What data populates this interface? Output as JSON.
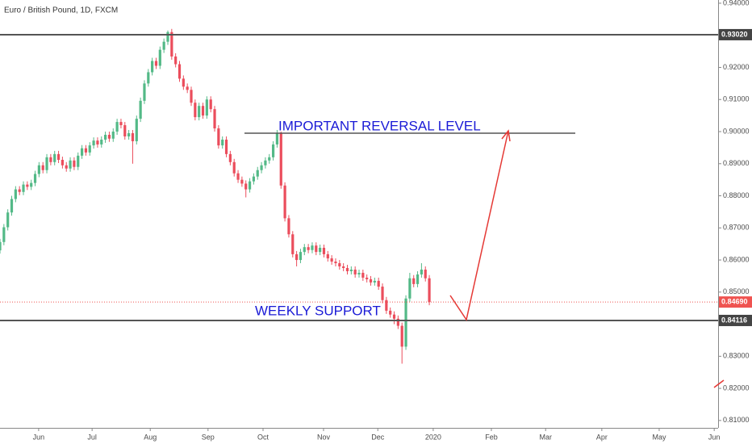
{
  "chart_data": {
    "type": "candlestick",
    "title": "Euro / British Pound, 1D, FXCM",
    "open": [
      0.863,
      0.8656,
      0.8702,
      0.8748,
      0.879,
      0.882,
      0.8812,
      0.8835,
      0.8828,
      0.884,
      0.8868,
      0.8895,
      0.888,
      0.892,
      0.8905,
      0.893,
      0.8912,
      0.8895,
      0.8885,
      0.891,
      0.889,
      0.8925,
      0.8948,
      0.8935,
      0.8957,
      0.8972,
      0.896,
      0.8975,
      0.899,
      0.8978,
      0.9,
      0.903,
      0.902,
      0.8985,
      0.8995,
      0.897,
      0.904,
      0.9096,
      0.915,
      0.9185,
      0.922,
      0.9205,
      0.9255,
      0.928,
      0.931,
      0.9234,
      0.921,
      0.9165,
      0.914,
      0.913,
      0.909,
      0.9045,
      0.908,
      0.905,
      0.91,
      0.907,
      0.901,
      0.8957,
      0.8975,
      0.893,
      0.8905,
      0.887,
      0.885,
      0.8838,
      0.882,
      0.8845,
      0.886,
      0.888,
      0.8895,
      0.891,
      0.892,
      0.896,
      0.8995,
      0.8832,
      0.873,
      0.868,
      0.8618,
      0.86,
      0.8625,
      0.864,
      0.8631,
      0.8645,
      0.8625,
      0.8638,
      0.8618,
      0.8605,
      0.8595,
      0.859,
      0.858,
      0.8575,
      0.8565,
      0.857,
      0.8555,
      0.856,
      0.8545,
      0.854,
      0.853,
      0.8535,
      0.8517,
      0.8475,
      0.8442,
      0.843,
      0.8417,
      0.8395,
      0.833,
      0.848,
      0.8543,
      0.8525,
      0.8555,
      0.857,
      0.8543
    ],
    "high": [
      0.8666,
      0.8712,
      0.8758,
      0.88,
      0.883,
      0.883,
      0.8845,
      0.8845,
      0.885,
      0.8878,
      0.8905,
      0.8905,
      0.893,
      0.893,
      0.894,
      0.894,
      0.8922,
      0.8905,
      0.892,
      0.892,
      0.8935,
      0.8958,
      0.8958,
      0.8967,
      0.8982,
      0.8982,
      0.8985,
      0.9,
      0.9,
      0.901,
      0.904,
      0.904,
      0.903,
      0.9005,
      0.9005,
      0.905,
      0.9106,
      0.916,
      0.9195,
      0.923,
      0.923,
      0.9265,
      0.929,
      0.9315,
      0.932,
      0.9244,
      0.922,
      0.9175,
      0.915,
      0.914,
      0.91,
      0.909,
      0.909,
      0.911,
      0.911,
      0.908,
      0.902,
      0.8985,
      0.8985,
      0.894,
      0.8915,
      0.888,
      0.886,
      0.8848,
      0.8855,
      0.887,
      0.889,
      0.8905,
      0.892,
      0.893,
      0.897,
      0.9005,
      0.9,
      0.8842,
      0.874,
      0.869,
      0.8628,
      0.8635,
      0.865,
      0.865,
      0.8655,
      0.8655,
      0.8648,
      0.8648,
      0.8628,
      0.8615,
      0.8605,
      0.86,
      0.859,
      0.8585,
      0.858,
      0.858,
      0.857,
      0.857,
      0.8555,
      0.855,
      0.8545,
      0.8545,
      0.8527,
      0.8485,
      0.8452,
      0.844,
      0.8427,
      0.8405,
      0.849,
      0.856,
      0.8553,
      0.8565,
      0.859,
      0.858,
      0.8553
    ],
    "low": [
      0.862,
      0.8646,
      0.8692,
      0.8738,
      0.878,
      0.8802,
      0.8802,
      0.8818,
      0.8818,
      0.883,
      0.8858,
      0.887,
      0.887,
      0.8895,
      0.8895,
      0.8902,
      0.8885,
      0.8875,
      0.8875,
      0.888,
      0.888,
      0.8915,
      0.8925,
      0.8925,
      0.8947,
      0.895,
      0.895,
      0.8965,
      0.8968,
      0.8968,
      0.899,
      0.901,
      0.8975,
      0.8975,
      0.89,
      0.896,
      0.903,
      0.9086,
      0.914,
      0.9175,
      0.9195,
      0.9195,
      0.9245,
      0.927,
      0.9224,
      0.92,
      0.9155,
      0.913,
      0.912,
      0.908,
      0.9035,
      0.9035,
      0.904,
      0.904,
      0.906,
      0.9,
      0.8947,
      0.8947,
      0.892,
      0.8895,
      0.886,
      0.884,
      0.8828,
      0.8795,
      0.881,
      0.8835,
      0.885,
      0.887,
      0.8885,
      0.89,
      0.891,
      0.895,
      0.8822,
      0.872,
      0.867,
      0.8608,
      0.858,
      0.859,
      0.8615,
      0.8621,
      0.8621,
      0.8615,
      0.8615,
      0.8608,
      0.8595,
      0.8585,
      0.858,
      0.857,
      0.8565,
      0.8555,
      0.8555,
      0.8545,
      0.8545,
      0.8535,
      0.853,
      0.852,
      0.852,
      0.8507,
      0.8465,
      0.8432,
      0.842,
      0.84,
      0.8385,
      0.8277,
      0.832,
      0.847,
      0.8515,
      0.8515,
      0.8545,
      0.8533,
      0.8459
    ],
    "close": [
      0.8656,
      0.8702,
      0.8748,
      0.879,
      0.882,
      0.8812,
      0.8835,
      0.8828,
      0.884,
      0.8868,
      0.8895,
      0.888,
      0.892,
      0.8905,
      0.893,
      0.8912,
      0.8895,
      0.8885,
      0.891,
      0.889,
      0.8925,
      0.8948,
      0.8935,
      0.8957,
      0.8972,
      0.896,
      0.8975,
      0.899,
      0.8978,
      0.9,
      0.903,
      0.902,
      0.8985,
      0.8995,
      0.897,
      0.904,
      0.9096,
      0.915,
      0.9185,
      0.922,
      0.9205,
      0.9255,
      0.928,
      0.931,
      0.9234,
      0.921,
      0.9165,
      0.914,
      0.913,
      0.909,
      0.9045,
      0.908,
      0.905,
      0.91,
      0.907,
      0.901,
      0.8957,
      0.8975,
      0.893,
      0.8905,
      0.887,
      0.885,
      0.8838,
      0.882,
      0.8845,
      0.886,
      0.888,
      0.8895,
      0.891,
      0.892,
      0.896,
      0.8995,
      0.8832,
      0.873,
      0.868,
      0.8618,
      0.86,
      0.8625,
      0.864,
      0.8631,
      0.8645,
      0.8625,
      0.8638,
      0.8618,
      0.8605,
      0.8595,
      0.859,
      0.858,
      0.8575,
      0.8565,
      0.857,
      0.8555,
      0.856,
      0.8545,
      0.854,
      0.853,
      0.8535,
      0.8517,
      0.8475,
      0.8442,
      0.843,
      0.8417,
      0.8395,
      0.833,
      0.848,
      0.8543,
      0.8525,
      0.8555,
      0.857,
      0.8543,
      0.8469
    ],
    "up_color": "#53b987",
    "down_color": "#eb4d5c",
    "xlim": [
      0,
      184
    ],
    "xticks": [
      {
        "value": 9.9,
        "label": "Jun"
      },
      {
        "value": 23.6,
        "label": "Jul"
      },
      {
        "value": 38.5,
        "label": "Aug"
      },
      {
        "value": 53.3,
        "label": "Sep"
      },
      {
        "value": 67.4,
        "label": "Oct"
      },
      {
        "value": 82.9,
        "label": "Nov"
      },
      {
        "value": 96.8,
        "label": "Dec"
      },
      {
        "value": 111.0,
        "label": "2020"
      },
      {
        "value": 125.9,
        "label": "Feb"
      },
      {
        "value": 139.8,
        "label": "Mar"
      },
      {
        "value": 154.2,
        "label": "Apr"
      },
      {
        "value": 168.9,
        "label": "May"
      },
      {
        "value": 183.0,
        "label": "Jun"
      }
    ],
    "ylim": [
      0.8077,
      0.941
    ],
    "yticks": [
      {
        "value": 0.81,
        "label": "0.81000"
      },
      {
        "value": 0.82,
        "label": "0.82000"
      },
      {
        "value": 0.83,
        "label": "0.83000"
      },
      {
        "value": 0.84,
        "label": "0.84000"
      },
      {
        "value": 0.85,
        "label": "0.85000"
      },
      {
        "value": 0.86,
        "label": "0.86000"
      },
      {
        "value": 0.87,
        "label": "0.87000"
      },
      {
        "value": 0.88,
        "label": "0.88000"
      },
      {
        "value": 0.89,
        "label": "0.89000"
      },
      {
        "value": 0.9,
        "label": "0.90000"
      },
      {
        "value": 0.91,
        "label": "0.91000"
      },
      {
        "value": 0.92,
        "label": "0.92000"
      },
      {
        "value": 0.93,
        "label": "0.93000"
      },
      {
        "value": 0.94,
        "label": "0.94000"
      }
    ],
    "levels": [
      {
        "value": 0.9302,
        "label": "0.93020"
      },
      {
        "value": 0.84116,
        "label": "0.84116"
      }
    ],
    "last_price": {
      "value": 0.8469,
      "label": "0.84690"
    },
    "annotations": [
      "IMPORTANT REVERSAL LEVEL",
      "WEEKLY SUPPORT"
    ]
  }
}
